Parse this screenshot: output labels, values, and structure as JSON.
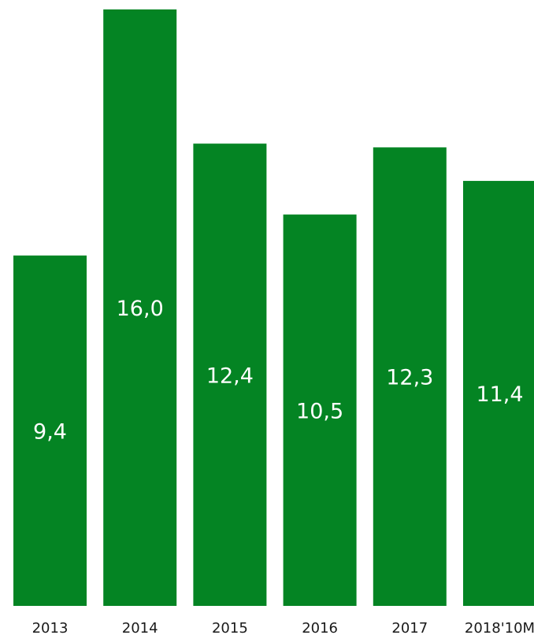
{
  "chart_data": {
    "type": "bar",
    "title": "",
    "xlabel": "",
    "ylabel": "",
    "categories": [
      "2013",
      "2014",
      "2015",
      "2016",
      "2017",
      "2018'10M"
    ],
    "values": [
      9.4,
      16.0,
      12.4,
      10.5,
      12.3,
      11.4
    ],
    "value_labels": [
      "9,4",
      "16,0",
      "12,4",
      "10,5",
      "12,3",
      "11,4"
    ],
    "ylim": [
      0,
      16.0
    ],
    "grid": false,
    "legend": "none",
    "colors": {
      "bar": "#048423",
      "value_text": "#ffffff",
      "tick_text": "#1a1a1a"
    }
  }
}
